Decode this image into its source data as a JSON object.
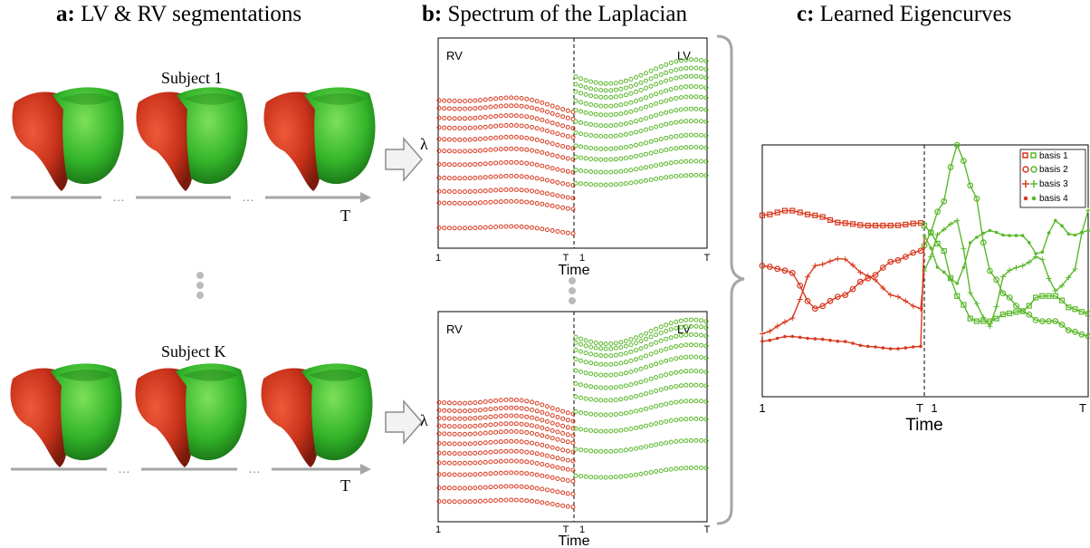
{
  "panels": {
    "a": {
      "letter": "a:",
      "title": "LV & RV segmentations"
    },
    "b": {
      "letter": "b:",
      "title": "Spectrum of the Laplacian"
    },
    "c": {
      "letter": "c:",
      "title": "Learned Eigencurves"
    }
  },
  "subjects": [
    "Subject 1",
    "Subject K"
  ],
  "time_arrow_label": "T",
  "dots": "…",
  "spectrum": {
    "rv_label": "RV",
    "lv_label": "LV",
    "ylabel": "λ",
    "xlabel": "Time",
    "ticks": [
      "1",
      "T",
      "1",
      "T"
    ]
  },
  "eigen": {
    "xlabel": "Time",
    "ticks": [
      "1",
      "T",
      "1",
      "T"
    ],
    "legend": [
      "basis 1",
      "basis 2",
      "basis 3",
      "basis 4"
    ]
  },
  "colors": {
    "rv": "#d9391e",
    "lv": "#5ab82a",
    "arrow": "#a6a6a6"
  },
  "chart_data": [
    {
      "type": "line",
      "title": "",
      "xlabel": "Time",
      "ylabel": "λ",
      "series": [
        {
          "name": "RV",
          "values": [
            0.05,
            0.18,
            0.24,
            0.31,
            0.38,
            0.45,
            0.51,
            0.57,
            0.62,
            0.67,
            0.71
          ]
        },
        {
          "name": "LV",
          "values": [
            0.3,
            0.37,
            0.44,
            0.5,
            0.57,
            0.63,
            0.69,
            0.74,
            0.79,
            0.83,
            0.87
          ]
        }
      ]
    },
    {
      "type": "line",
      "title": "",
      "xlabel": "Time",
      "ylabel": "λ",
      "series": [
        {
          "name": "RV",
          "values": [
            0.05,
            0.12,
            0.19,
            0.25,
            0.3,
            0.35,
            0.4,
            0.44,
            0.48,
            0.52,
            0.56
          ]
        },
        {
          "name": "LV",
          "values": [
            0.2,
            0.34,
            0.45,
            0.54,
            0.62,
            0.69,
            0.76,
            0.82,
            0.87,
            0.91,
            0.94
          ]
        }
      ]
    },
    {
      "type": "line",
      "title": "",
      "xlabel": "Time",
      "series": [
        {
          "name": "basis 1",
          "rv": [
            0.72,
            0.74,
            0.72,
            0.69,
            0.68,
            0.68,
            0.69
          ],
          "lv": [
            0.68,
            0.6,
            0.4,
            0.3,
            0.3,
            0.33,
            0.34,
            0.4,
            0.4,
            0.35,
            0.33
          ]
        },
        {
          "name": "basis 2",
          "rv": [
            0.52,
            0.5,
            0.35,
            0.4,
            0.47,
            0.54,
            0.58
          ],
          "lv": [
            0.6,
            0.75,
            1.0,
            0.82,
            0.5,
            0.4,
            0.34,
            0.3,
            0.3,
            0.26,
            0.24
          ]
        },
        {
          "name": "basis 3",
          "rv": [
            0.25,
            0.3,
            0.52,
            0.55,
            0.48,
            0.4,
            0.35
          ],
          "lv": [
            0.5,
            0.66,
            0.7,
            0.38,
            0.28,
            0.5,
            0.52,
            0.56,
            0.42,
            0.48,
            0.74
          ]
        },
        {
          "name": "basis 4",
          "rv": [
            0.22,
            0.24,
            0.23,
            0.22,
            0.2,
            0.19,
            0.2
          ],
          "lv": [
            0.64,
            0.5,
            0.45,
            0.63,
            0.66,
            0.64,
            0.64,
            0.56,
            0.7,
            0.64,
            0.66
          ]
        }
      ]
    }
  ]
}
